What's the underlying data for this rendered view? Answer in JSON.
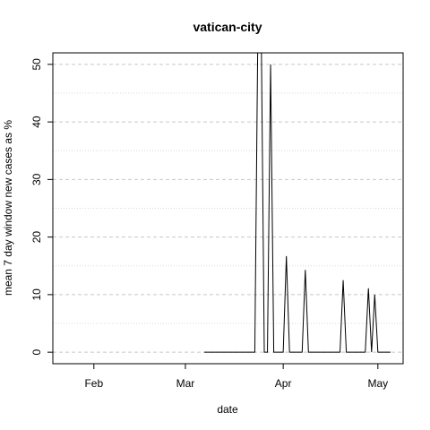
{
  "chart_data": {
    "type": "line",
    "title": "vatican-city",
    "xlabel": "date",
    "ylabel": "mean  7  day window new cases as %",
    "x_ticks": [
      {
        "label": "Feb",
        "date": "2020-02-01"
      },
      {
        "label": "Mar",
        "date": "2020-03-01"
      },
      {
        "label": "Apr",
        "date": "2020-04-01"
      },
      {
        "label": "May",
        "date": "2020-05-01"
      }
    ],
    "xlim": [
      "2020-01-19",
      "2020-05-09"
    ],
    "ylim": [
      -2,
      52
    ],
    "y_ticks": [
      0,
      10,
      20,
      30,
      40,
      50
    ],
    "y_minor_grid": [
      5,
      15,
      25,
      35,
      45
    ],
    "grid": true,
    "series": [
      {
        "points": [
          [
            "2020-03-07",
            0
          ],
          [
            "2020-03-23",
            0
          ],
          [
            "2020-03-24",
            58
          ],
          [
            "2020-03-25",
            58
          ],
          [
            "2020-03-26",
            0
          ],
          [
            "2020-03-27",
            0
          ],
          [
            "2020-03-28",
            50
          ],
          [
            "2020-03-29",
            0
          ],
          [
            "2020-04-01",
            0
          ],
          [
            "2020-04-02",
            16.7
          ],
          [
            "2020-04-03",
            0
          ],
          [
            "2020-04-07",
            0
          ],
          [
            "2020-04-08",
            14.3
          ],
          [
            "2020-04-09",
            0
          ],
          [
            "2020-04-19",
            0
          ],
          [
            "2020-04-20",
            12.5
          ],
          [
            "2020-04-21",
            0
          ],
          [
            "2020-04-27",
            0
          ],
          [
            "2020-04-28",
            11.1
          ],
          [
            "2020-04-29",
            0
          ],
          [
            "2020-04-30",
            10
          ],
          [
            "2020-05-01",
            0
          ],
          [
            "2020-05-05",
            0
          ]
        ]
      }
    ]
  }
}
